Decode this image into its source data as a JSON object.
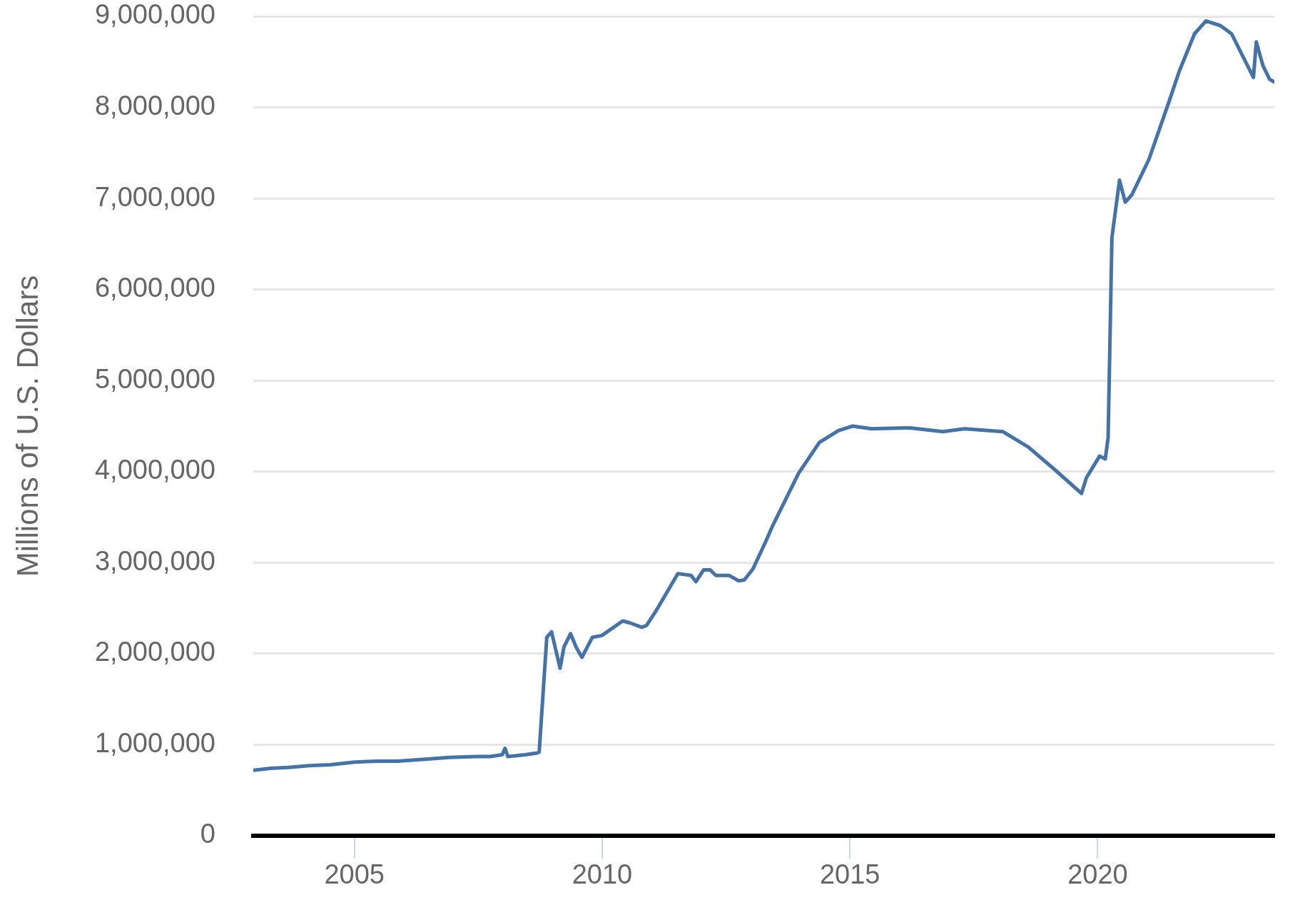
{
  "chart_data": {
    "type": "line",
    "ylabel": "Millions of U.S. Dollars",
    "x": [
      "2002-12-18",
      "2003-04-23",
      "2003-09-03",
      "2004-02-04",
      "2004-07-07",
      "2005-01-05",
      "2005-06-15",
      "2005-11-16",
      "2006-06-07",
      "2006-11-29",
      "2007-06-13",
      "2007-09-26",
      "2007-12-26",
      "2008-01-16",
      "2008-02-06",
      "2008-06-11",
      "2008-09-10",
      "2008-09-24",
      "2008-10-22",
      "2008-11-19",
      "2008-12-24",
      "2009-02-25",
      "2009-03-25",
      "2009-05-13",
      "2009-06-24",
      "2009-08-05",
      "2009-10-21",
      "2009-12-30",
      "2010-06-02",
      "2010-07-21",
      "2010-10-20",
      "2010-11-24",
      "2011-02-02",
      "2011-07-13",
      "2011-10-19",
      "2011-11-23",
      "2012-01-18",
      "2012-03-07",
      "2012-04-18",
      "2012-07-25",
      "2012-10-03",
      "2012-11-14",
      "2013-01-16",
      "2013-04-17",
      "2013-06-12",
      "2013-12-18",
      "2014-05-21",
      "2014-10-08",
      "2015-01-21",
      "2015-06-10",
      "2016-03-16",
      "2016-11-16",
      "2017-04-26",
      "2018-01-31",
      "2018-08-08",
      "2019-02-20",
      "2019-09-04",
      "2019-10-09",
      "2020-01-15",
      "2020-02-26",
      "2020-03-18",
      "2020-04-15",
      "2020-06-10",
      "2020-07-22",
      "2020-09-09",
      "2021-01-13",
      "2021-03-24",
      "2021-06-09",
      "2021-08-25",
      "2021-12-15",
      "2022-03-09",
      "2022-06-22",
      "2022-09-14",
      "2022-11-16",
      "2023-02-22",
      "2023-03-15",
      "2023-05-03",
      "2023-06-21",
      "2023-07-26"
    ],
    "series": [
      {
        "color": "#4572a7",
        "values": [
          720000,
          740000,
          750000,
          770000,
          780000,
          810000,
          820000,
          820000,
          840000,
          860000,
          870000,
          870000,
          890000,
          960000,
          870000,
          890000,
          910000,
          920000,
          1550000,
          2180000,
          2240000,
          1840000,
          2070000,
          2220000,
          2070000,
          1960000,
          2180000,
          2200000,
          2360000,
          2340000,
          2290000,
          2310000,
          2470000,
          2880000,
          2860000,
          2790000,
          2920000,
          2920000,
          2860000,
          2860000,
          2800000,
          2810000,
          2930000,
          3220000,
          3410000,
          3980000,
          4320000,
          4450000,
          4500000,
          4470000,
          4480000,
          4440000,
          4470000,
          4440000,
          4270000,
          4020000,
          3760000,
          3930000,
          4170000,
          4140000,
          4370000,
          6570000,
          7200000,
          6960000,
          7040000,
          7430000,
          7730000,
          8060000,
          8400000,
          8810000,
          8950000,
          8900000,
          8810000,
          8620000,
          8330000,
          8720000,
          8460000,
          8310000,
          8280000
        ]
      }
    ],
    "xlim": [
      "2002-12-18",
      "2023-07-26"
    ],
    "xticks": [
      {
        "value": "2005-01-01",
        "label": "2005"
      },
      {
        "value": "2010-01-01",
        "label": "2010"
      },
      {
        "value": "2015-01-01",
        "label": "2015"
      },
      {
        "value": "2020-01-01",
        "label": "2020"
      }
    ],
    "ylim": [
      0,
      9000000
    ],
    "yticks": [
      {
        "value": 0,
        "label": "0"
      },
      {
        "value": 1000000,
        "label": "1,000,000"
      },
      {
        "value": 2000000,
        "label": "2,000,000"
      },
      {
        "value": 3000000,
        "label": "3,000,000"
      },
      {
        "value": 4000000,
        "label": "4,000,000"
      },
      {
        "value": 5000000,
        "label": "5,000,000"
      },
      {
        "value": 6000000,
        "label": "6,000,000"
      },
      {
        "value": 7000000,
        "label": "7,000,000"
      },
      {
        "value": 8000000,
        "label": "8,000,000"
      },
      {
        "value": 9000000,
        "label": "9,000,000"
      }
    ],
    "grid": "y"
  }
}
